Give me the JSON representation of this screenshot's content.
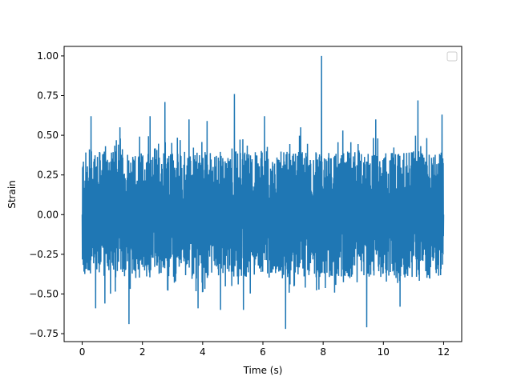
{
  "chart_data": {
    "type": "line",
    "title": "",
    "xlabel": "Time (s)",
    "ylabel": "Strain",
    "xlim": [
      -0.6,
      12.6
    ],
    "ylim": [
      -0.8,
      1.06
    ],
    "xticks": [
      0,
      2,
      4,
      6,
      8,
      10,
      12
    ],
    "xtick_labels": [
      "0",
      "2",
      "4",
      "6",
      "8",
      "10",
      "12"
    ],
    "yticks": [
      -0.75,
      -0.5,
      -0.25,
      0.0,
      0.25,
      0.5,
      0.75,
      1.0
    ],
    "ytick_labels": [
      "−0.75",
      "−0.50",
      "−0.25",
      "0.00",
      "0.25",
      "0.50",
      "0.75",
      "1.00"
    ],
    "grid": false,
    "legend": {
      "placement": "top-right",
      "entries": []
    },
    "series": [
      {
        "color": "#1f77b4",
        "x_range": [
          0,
          12
        ],
        "typical_band": [
          -0.4,
          0.4
        ],
        "peaks": [
          {
            "x": 0.3,
            "y": 0.62
          },
          {
            "x": 0.45,
            "y": -0.59
          },
          {
            "x": 0.75,
            "y": -0.56
          },
          {
            "x": 1.25,
            "y": 0.55
          },
          {
            "x": 1.55,
            "y": -0.69
          },
          {
            "x": 2.25,
            "y": 0.62
          },
          {
            "x": 2.75,
            "y": 0.71
          },
          {
            "x": 3.55,
            "y": 0.6
          },
          {
            "x": 3.85,
            "y": -0.59
          },
          {
            "x": 4.15,
            "y": 0.59
          },
          {
            "x": 4.6,
            "y": -0.6
          },
          {
            "x": 5.05,
            "y": 0.76
          },
          {
            "x": 5.35,
            "y": -0.6
          },
          {
            "x": 6.05,
            "y": 0.62
          },
          {
            "x": 6.75,
            "y": -0.72
          },
          {
            "x": 7.25,
            "y": 0.55
          },
          {
            "x": 7.95,
            "y": 1.0
          },
          {
            "x": 8.65,
            "y": 0.53
          },
          {
            "x": 9.45,
            "y": -0.71
          },
          {
            "x": 9.75,
            "y": 0.6
          },
          {
            "x": 10.55,
            "y": -0.58
          },
          {
            "x": 11.15,
            "y": 0.72
          },
          {
            "x": 11.95,
            "y": 0.63
          }
        ]
      }
    ]
  }
}
